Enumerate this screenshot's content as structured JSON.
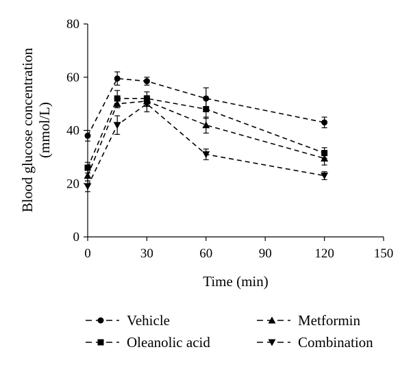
{
  "chart_data": {
    "type": "line",
    "title": "",
    "xlabel": "Time (min)",
    "ylabel_lines": [
      "Blood glucose concentration",
      "(mmol/L)"
    ],
    "xlim": [
      0,
      150
    ],
    "ylim": [
      0,
      80
    ],
    "x_ticks": [
      0,
      30,
      60,
      90,
      120,
      150
    ],
    "y_ticks": [
      0,
      20,
      40,
      60,
      80
    ],
    "grid": false,
    "line_style": "dashed",
    "legend_position": "bottom",
    "x": [
      0,
      15,
      30,
      60,
      120
    ],
    "series": [
      {
        "name": "Vehicle",
        "marker": "circle",
        "values": [
          38,
          59.5,
          58.5,
          52,
          43
        ],
        "errors": [
          2,
          2.5,
          1.5,
          4,
          2
        ]
      },
      {
        "name": "Metformin",
        "marker": "triangle-up",
        "values": [
          23,
          50,
          51,
          42,
          29.5
        ],
        "errors": [
          2,
          1.5,
          2,
          3,
          2.5
        ]
      },
      {
        "name": "Oleanolic acid",
        "marker": "square",
        "values": [
          26,
          52,
          52,
          48,
          31.5
        ],
        "errors": [
          2,
          3,
          2.5,
          3.5,
          2
        ]
      },
      {
        "name": "Combination",
        "marker": "triangle-down",
        "values": [
          19,
          42,
          50,
          31,
          23
        ],
        "errors": [
          2,
          3.5,
          3,
          2,
          1.5
        ]
      }
    ]
  }
}
